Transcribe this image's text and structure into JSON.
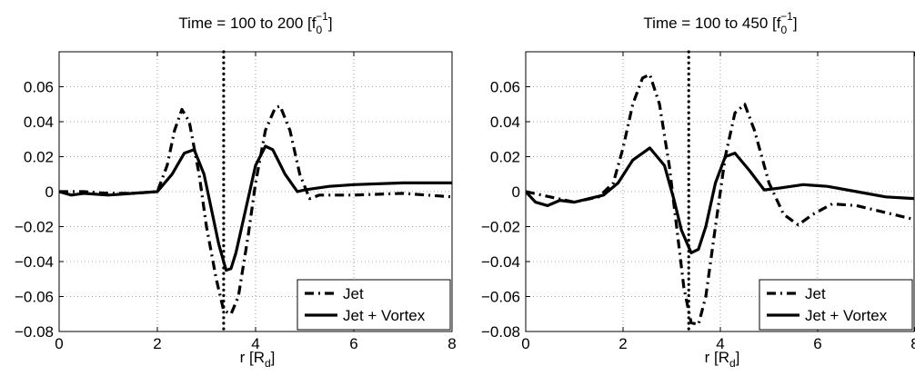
{
  "chart_data": [
    {
      "type": "line",
      "title": {
        "main": "Time = 100 to 200 [f",
        "sub": "0",
        "sup": "−1",
        "close": "]"
      },
      "xlabel": {
        "main": "r [R",
        "sub": "d",
        "close": "]"
      },
      "ylabel": "",
      "xlim": [
        0,
        8
      ],
      "ylim": [
        -0.08,
        0.08
      ],
      "xticks": [
        0,
        2,
        4,
        6,
        8
      ],
      "yticks": [
        -0.08,
        -0.06,
        -0.04,
        -0.02,
        0,
        0.02,
        0.04,
        0.06
      ],
      "xtick_labels": [
        "0",
        "2",
        "4",
        "6",
        "8"
      ],
      "ytick_labels": [
        "−0.08",
        "−0.06",
        "−0.04",
        "−0.02",
        "0",
        "0.02",
        "0.04",
        "0.06"
      ],
      "grid": true,
      "vline_x": 3.35,
      "legend_position": "bottom-right",
      "series": [
        {
          "name": "Jet",
          "style": "dashdot",
          "color": "#000000",
          "points": [
            [
              0,
              0.0
            ],
            [
              0.5,
              0.0
            ],
            [
              1.0,
              -0.001
            ],
            [
              1.5,
              -0.001
            ],
            [
              2.0,
              0.0
            ],
            [
              2.2,
              0.015
            ],
            [
              2.35,
              0.035
            ],
            [
              2.5,
              0.047
            ],
            [
              2.65,
              0.04
            ],
            [
              2.85,
              0.01
            ],
            [
              3.0,
              -0.02
            ],
            [
              3.2,
              -0.05
            ],
            [
              3.35,
              -0.068
            ],
            [
              3.5,
              -0.07
            ],
            [
              3.65,
              -0.06
            ],
            [
              3.85,
              -0.025
            ],
            [
              4.0,
              0.005
            ],
            [
              4.2,
              0.035
            ],
            [
              4.4,
              0.048
            ],
            [
              4.5,
              0.049
            ],
            [
              4.7,
              0.035
            ],
            [
              4.9,
              0.01
            ],
            [
              5.1,
              -0.004
            ],
            [
              5.3,
              -0.002
            ],
            [
              6.0,
              -0.002
            ],
            [
              7.0,
              -0.001
            ],
            [
              8.0,
              -0.003
            ]
          ]
        },
        {
          "name": "Jet + Vortex",
          "style": "solid",
          "color": "#000000",
          "points": [
            [
              0,
              0.0
            ],
            [
              0.25,
              -0.002
            ],
            [
              0.5,
              -0.001
            ],
            [
              1.0,
              -0.002
            ],
            [
              1.5,
              -0.001
            ],
            [
              2.0,
              0.0
            ],
            [
              2.3,
              0.01
            ],
            [
              2.55,
              0.022
            ],
            [
              2.75,
              0.024
            ],
            [
              2.95,
              0.01
            ],
            [
              3.1,
              -0.01
            ],
            [
              3.25,
              -0.03
            ],
            [
              3.4,
              -0.045
            ],
            [
              3.5,
              -0.044
            ],
            [
              3.6,
              -0.035
            ],
            [
              3.8,
              -0.01
            ],
            [
              4.0,
              0.015
            ],
            [
              4.2,
              0.026
            ],
            [
              4.35,
              0.024
            ],
            [
              4.6,
              0.01
            ],
            [
              4.85,
              0.0
            ],
            [
              5.0,
              0.001
            ],
            [
              5.5,
              0.003
            ],
            [
              6.0,
              0.004
            ],
            [
              7.0,
              0.005
            ],
            [
              8.0,
              0.005
            ]
          ]
        }
      ]
    },
    {
      "type": "line",
      "title": {
        "main": "Time = 100 to 450 [f",
        "sub": "0",
        "sup": "−1",
        "close": "]"
      },
      "xlabel": {
        "main": "r [R",
        "sub": "d",
        "close": "]"
      },
      "ylabel": "",
      "xlim": [
        0,
        8
      ],
      "ylim": [
        -0.08,
        0.08
      ],
      "xticks": [
        0,
        2,
        4,
        6,
        8
      ],
      "yticks": [
        -0.08,
        -0.06,
        -0.04,
        -0.02,
        0,
        0.02,
        0.04,
        0.06
      ],
      "xtick_labels": [
        "0",
        "2",
        "4",
        "6",
        "8"
      ],
      "ytick_labels": [
        "−0.08",
        "−0.06",
        "−0.04",
        "−0.02",
        "0",
        "0.02",
        "0.04",
        "0.06"
      ],
      "grid": true,
      "vline_x": 3.35,
      "legend_position": "bottom-right",
      "series": [
        {
          "name": "Jet",
          "style": "dashdot",
          "color": "#000000",
          "points": [
            [
              0,
              0.0
            ],
            [
              0.5,
              -0.003
            ],
            [
              1.0,
              -0.006
            ],
            [
              1.5,
              -0.003
            ],
            [
              1.8,
              0.005
            ],
            [
              2.0,
              0.025
            ],
            [
              2.2,
              0.05
            ],
            [
              2.4,
              0.065
            ],
            [
              2.55,
              0.067
            ],
            [
              2.75,
              0.05
            ],
            [
              2.95,
              0.015
            ],
            [
              3.1,
              -0.02
            ],
            [
              3.25,
              -0.055
            ],
            [
              3.4,
              -0.075
            ],
            [
              3.55,
              -0.076
            ],
            [
              3.7,
              -0.06
            ],
            [
              3.9,
              -0.02
            ],
            [
              4.1,
              0.02
            ],
            [
              4.3,
              0.045
            ],
            [
              4.5,
              0.05
            ],
            [
              4.7,
              0.035
            ],
            [
              5.0,
              0.005
            ],
            [
              5.3,
              -0.013
            ],
            [
              5.6,
              -0.019
            ],
            [
              5.9,
              -0.013
            ],
            [
              6.3,
              -0.007
            ],
            [
              6.8,
              -0.008
            ],
            [
              7.4,
              -0.012
            ],
            [
              8.0,
              -0.016
            ]
          ]
        },
        {
          "name": "Jet + Vortex",
          "style": "solid",
          "color": "#000000",
          "points": [
            [
              0,
              0.0
            ],
            [
              0.2,
              -0.006
            ],
            [
              0.45,
              -0.008
            ],
            [
              0.7,
              -0.005
            ],
            [
              1.0,
              -0.006
            ],
            [
              1.3,
              -0.004
            ],
            [
              1.6,
              -0.002
            ],
            [
              1.9,
              0.005
            ],
            [
              2.2,
              0.018
            ],
            [
              2.55,
              0.025
            ],
            [
              2.85,
              0.015
            ],
            [
              3.05,
              -0.005
            ],
            [
              3.2,
              -0.022
            ],
            [
              3.4,
              -0.035
            ],
            [
              3.55,
              -0.033
            ],
            [
              3.7,
              -0.02
            ],
            [
              3.9,
              0.005
            ],
            [
              4.1,
              0.02
            ],
            [
              4.3,
              0.022
            ],
            [
              4.6,
              0.012
            ],
            [
              4.9,
              0.001
            ],
            [
              5.2,
              0.002
            ],
            [
              5.7,
              0.004
            ],
            [
              6.2,
              0.003
            ],
            [
              6.8,
              0.0
            ],
            [
              7.4,
              -0.003
            ],
            [
              8.0,
              -0.004
            ]
          ]
        }
      ]
    }
  ]
}
